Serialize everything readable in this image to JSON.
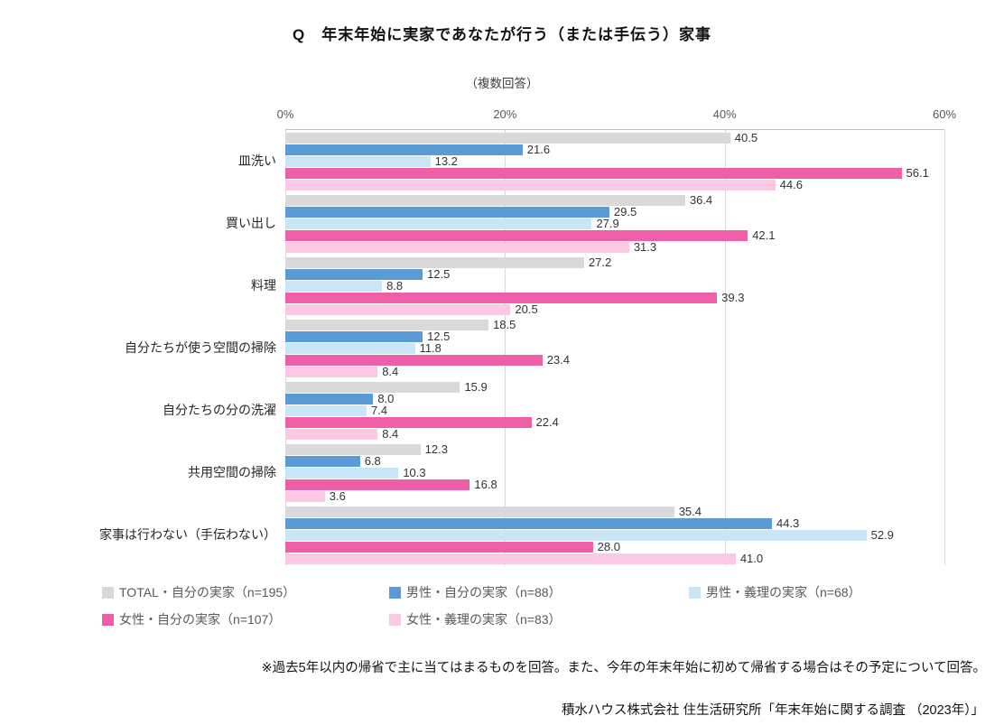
{
  "title": "Q　年末年始に実家であなたが行う（または手伝う）家事",
  "subtitle": "（複数回答）",
  "chart_data": {
    "type": "bar",
    "orientation": "horizontal",
    "title": "Q　年末年始に実家であなたが行う（または手伝う）家事",
    "subtitle": "（複数回答）",
    "xlim": [
      0,
      60
    ],
    "x_ticks": [
      "0%",
      "20%",
      "40%",
      "60%"
    ],
    "grid": true,
    "legend_position": "bottom",
    "categories": [
      "皿洗い",
      "買い出し",
      "料理",
      "自分たちが使う空間の掃除",
      "自分たちの分の洗濯",
      "共用空間の掃除",
      "家事は行わない（手伝わない）"
    ],
    "series": [
      {
        "name": "TOTAL・自分の実家（n=195）",
        "color": "#d9d9d9",
        "values": [
          40.5,
          36.4,
          27.2,
          18.5,
          15.9,
          12.3,
          35.4
        ]
      },
      {
        "name": "男性・自分の実家（n=88）",
        "color": "#5b9bd5",
        "values": [
          21.6,
          29.5,
          12.5,
          12.5,
          8.0,
          6.8,
          44.3
        ]
      },
      {
        "name": "男性・義理の実家（n=68）",
        "color": "#c9e6f7",
        "values": [
          13.2,
          27.9,
          8.8,
          11.8,
          7.4,
          10.3,
          52.9
        ]
      },
      {
        "name": "女性・自分の実家（n=107）",
        "color": "#ef5fa7",
        "values": [
          56.1,
          42.1,
          39.3,
          23.4,
          22.4,
          16.8,
          28.0
        ]
      },
      {
        "name": "女性・義理の実家（n=83）",
        "color": "#fbc9e3",
        "values": [
          44.6,
          31.3,
          20.5,
          8.4,
          8.4,
          3.6,
          41.0
        ]
      }
    ]
  },
  "note": "※過去5年以内の帰省で主に当てはまるものを回答。また、今年の年末年始に初めて帰省する場合はその予定について回答。",
  "source": "積水ハウス株式会社 住生活研究所「年末年始に関する調査 （2023年）」"
}
